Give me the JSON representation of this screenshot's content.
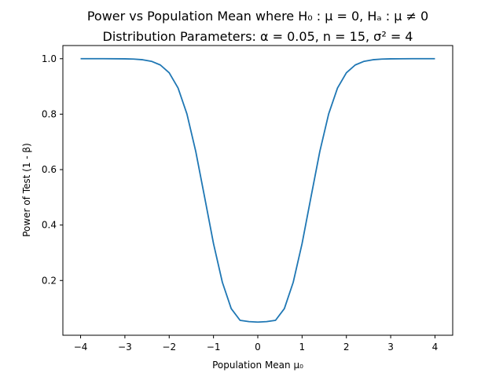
{
  "chart_data": {
    "type": "line",
    "title_line1": "Power vs Population Mean where H₀ : μ = 0, Hₐ : μ ≠ 0",
    "title_line2": "Distribution Parameters: α = 0.05, n = 15, σ² = 4",
    "xlabel": "Population Mean μ₀",
    "ylabel": "Power of Test (1 - β)",
    "xlim": [
      -4.4,
      4.4
    ],
    "ylim": [
      0.0025,
      1.0475
    ],
    "x_ticks": [
      -4,
      -3,
      -2,
      -1,
      0,
      1,
      2,
      3,
      4
    ],
    "x_tick_labels": [
      "−4",
      "−3",
      "−2",
      "−1",
      "0",
      "1",
      "2",
      "3",
      "4"
    ],
    "y_ticks": [
      0.2,
      0.4,
      0.6,
      0.8,
      1.0
    ],
    "y_tick_labels": [
      "0.2",
      "0.4",
      "0.6",
      "0.8",
      "1.0"
    ],
    "grid": false,
    "series": [
      {
        "color": "#1f77b4",
        "x": [
          -4.0,
          -3.5,
          -3.0,
          -2.8,
          -2.6,
          -2.4,
          -2.2,
          -2.0,
          -1.8,
          -1.6,
          -1.4,
          -1.2,
          -1.0,
          -0.8,
          -0.6,
          -0.4,
          -0.2,
          0.0,
          0.2,
          0.4,
          0.6,
          0.8,
          1.0,
          1.2,
          1.4,
          1.6,
          1.8,
          2.0,
          2.2,
          2.4,
          2.6,
          2.8,
          3.0,
          3.5,
          4.0
        ],
        "y": [
          1.0,
          1.0,
          0.9995,
          0.9986,
          0.9963,
          0.9906,
          0.9774,
          0.9492,
          0.8945,
          0.8009,
          0.6653,
          0.5004,
          0.3333,
          0.1937,
          0.0986,
          0.0563,
          0.0518,
          0.05,
          0.0518,
          0.0563,
          0.0986,
          0.1937,
          0.3333,
          0.5004,
          0.6653,
          0.8009,
          0.8945,
          0.9492,
          0.9774,
          0.9906,
          0.9963,
          0.9986,
          0.9995,
          1.0,
          1.0
        ]
      }
    ]
  }
}
